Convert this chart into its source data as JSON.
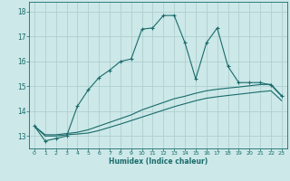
{
  "xlabel": "Humidex (Indice chaleur)",
  "xlim": [
    -0.5,
    23.5
  ],
  "ylim": [
    12.5,
    18.4
  ],
  "xticks": [
    0,
    1,
    2,
    3,
    4,
    5,
    6,
    7,
    8,
    9,
    10,
    11,
    12,
    13,
    14,
    15,
    16,
    17,
    18,
    19,
    20,
    21,
    22,
    23
  ],
  "yticks": [
    13,
    14,
    15,
    16,
    17,
    18
  ],
  "bg_color": "#cce8e8",
  "line_color": "#1a6b6b",
  "grid_color": "#b0d0d0",
  "line1_x": [
    0,
    1,
    2,
    3,
    4,
    5,
    6,
    7,
    8,
    9,
    10,
    11,
    12,
    13,
    14,
    15,
    16,
    17,
    18,
    19,
    20,
    21,
    22,
    23
  ],
  "line1_y": [
    13.4,
    12.8,
    12.9,
    13.0,
    14.2,
    14.85,
    15.35,
    15.65,
    16.0,
    16.1,
    17.3,
    17.35,
    17.85,
    17.85,
    16.75,
    15.3,
    16.75,
    17.35,
    15.8,
    15.15,
    15.15,
    15.15,
    15.05,
    14.6
  ],
  "line2_x": [
    0,
    1,
    2,
    3,
    4,
    5,
    6,
    7,
    8,
    9,
    10,
    11,
    12,
    13,
    14,
    15,
    16,
    17,
    18,
    19,
    20,
    21,
    22,
    23
  ],
  "line2_y": [
    13.4,
    13.05,
    13.05,
    13.1,
    13.15,
    13.25,
    13.4,
    13.55,
    13.7,
    13.85,
    14.05,
    14.2,
    14.35,
    14.5,
    14.6,
    14.72,
    14.82,
    14.88,
    14.93,
    14.97,
    15.02,
    15.07,
    15.08,
    14.62
  ],
  "line3_x": [
    0,
    1,
    2,
    3,
    4,
    5,
    6,
    7,
    8,
    9,
    10,
    11,
    12,
    13,
    14,
    15,
    16,
    17,
    18,
    19,
    20,
    21,
    22,
    23
  ],
  "line3_y": [
    13.4,
    13.0,
    13.0,
    13.05,
    13.08,
    13.12,
    13.22,
    13.35,
    13.48,
    13.62,
    13.76,
    13.9,
    14.04,
    14.18,
    14.3,
    14.42,
    14.52,
    14.58,
    14.63,
    14.68,
    14.73,
    14.78,
    14.82,
    14.42
  ]
}
